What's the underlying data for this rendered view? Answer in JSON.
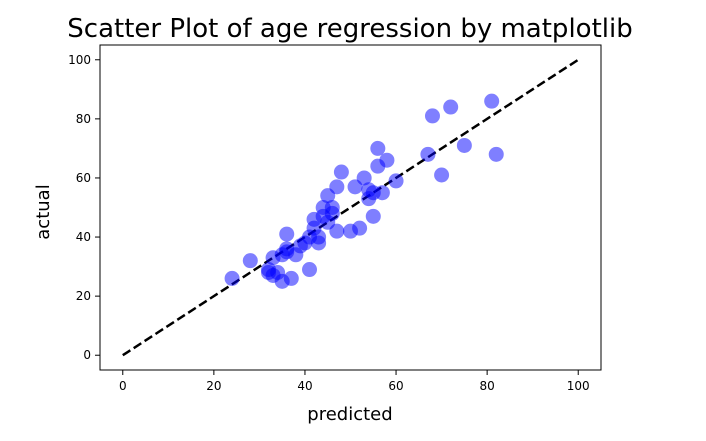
{
  "chart_data": {
    "type": "scatter",
    "title": "Scatter Plot of age regression by matplotlib",
    "xlabel": "predicted",
    "ylabel": "actual",
    "xlim": [
      -5,
      105
    ],
    "ylim": [
      -5,
      105
    ],
    "xticks": [
      0,
      20,
      40,
      60,
      80,
      100
    ],
    "yticks": [
      0,
      20,
      40,
      60,
      80,
      100
    ],
    "grid": false,
    "marker_color": "#0000ff",
    "reference_line": {
      "style": "dashed",
      "color": "#000000",
      "from": [
        0,
        0
      ],
      "to": [
        100,
        100
      ]
    },
    "series": [
      {
        "x": [
          24,
          28,
          32,
          32,
          33,
          33,
          34,
          35,
          35,
          36,
          36,
          36,
          37,
          38,
          39,
          40,
          41,
          41,
          42,
          42,
          43,
          43,
          44,
          44,
          45,
          45,
          46,
          46,
          47,
          47,
          48,
          50,
          51,
          52,
          53,
          54,
          54,
          55,
          55,
          56,
          56,
          57,
          58,
          60,
          67,
          68,
          70,
          72,
          75,
          81,
          82
        ],
        "y": [
          26,
          32,
          28,
          29,
          27,
          33,
          28,
          34,
          25,
          36,
          35,
          41,
          26,
          34,
          37,
          38,
          29,
          40,
          43,
          46,
          38,
          40,
          47,
          50,
          45,
          54,
          48,
          50,
          42,
          57,
          62,
          42,
          57,
          43,
          60,
          53,
          56,
          47,
          55,
          64,
          70,
          55,
          66,
          59,
          68,
          81,
          61,
          84,
          71,
          86,
          68
        ]
      }
    ]
  }
}
